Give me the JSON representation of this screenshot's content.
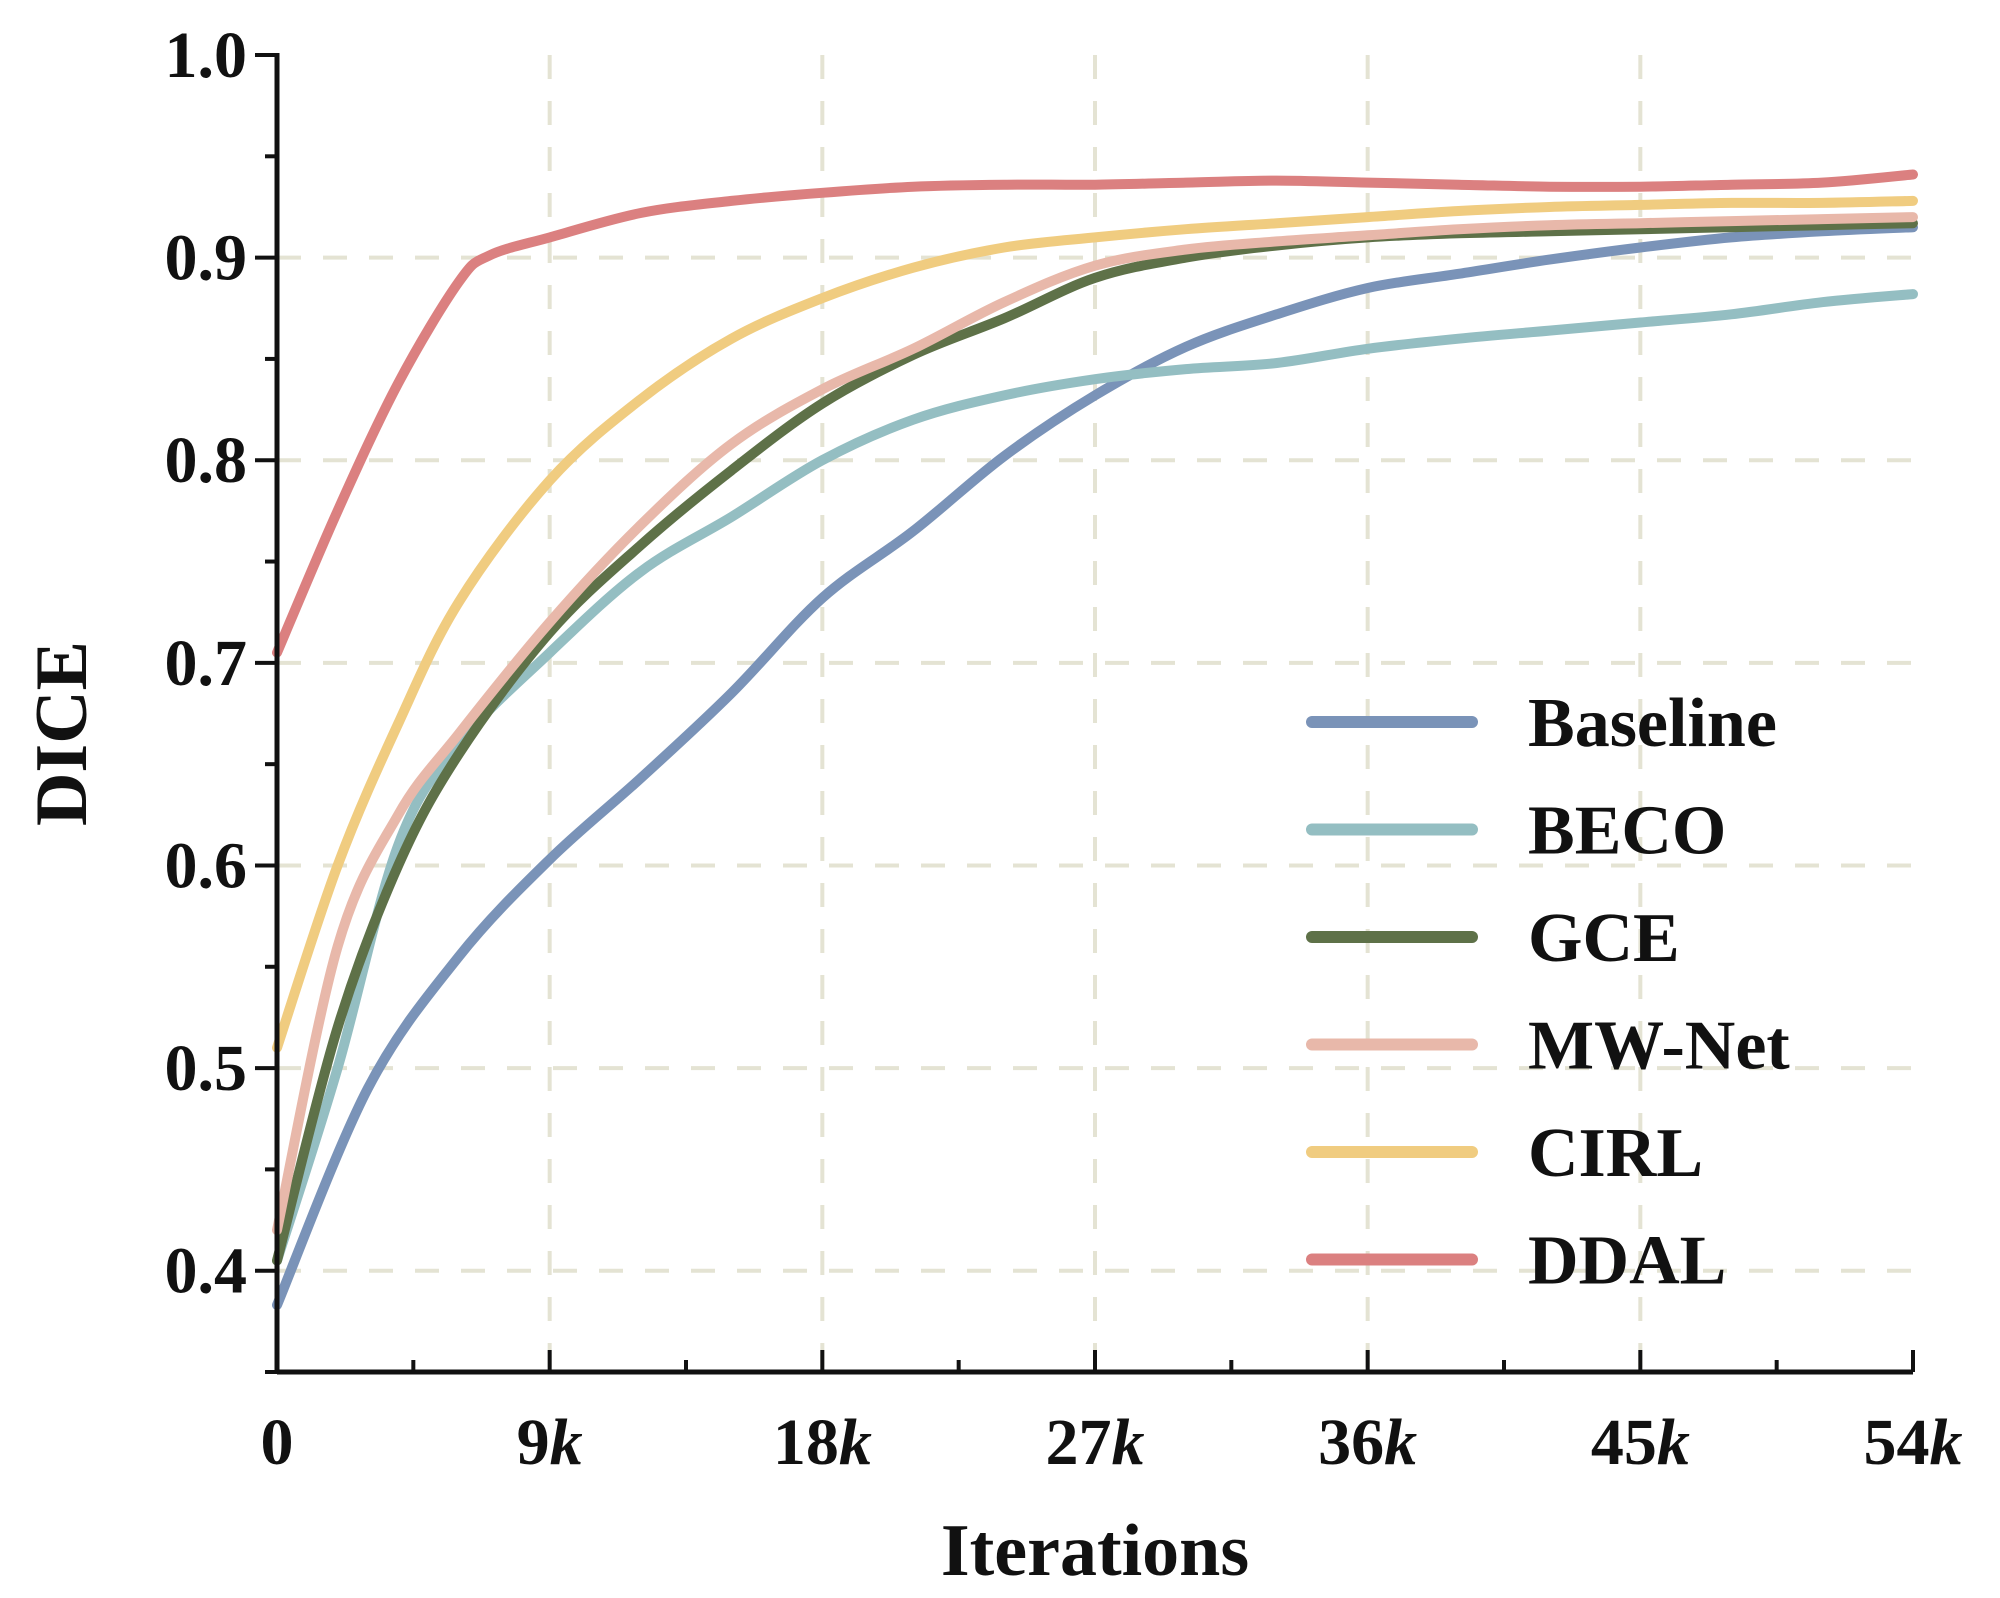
{
  "chart_data": {
    "type": "line",
    "title": "",
    "xlabel": "Iterations",
    "ylabel": "DICE",
    "xlim": [
      0,
      54
    ],
    "ylim": [
      0.35,
      1.0
    ],
    "grid": true,
    "legend_position": "bottom-right",
    "x_ticks": [
      {
        "value": 0,
        "num": "0",
        "suffix": ""
      },
      {
        "value": 9,
        "num": "9",
        "suffix": "k"
      },
      {
        "value": 18,
        "num": "18",
        "suffix": "k"
      },
      {
        "value": 27,
        "num": "27",
        "suffix": "k"
      },
      {
        "value": 36,
        "num": "36",
        "suffix": "k"
      },
      {
        "value": 45,
        "num": "45",
        "suffix": "k"
      },
      {
        "value": 54,
        "num": "54",
        "suffix": "k"
      }
    ],
    "y_ticks": [
      {
        "value": 0.4,
        "label": "0.4"
      },
      {
        "value": 0.5,
        "label": "0.5"
      },
      {
        "value": 0.6,
        "label": "0.6"
      },
      {
        "value": 0.7,
        "label": "0.7"
      },
      {
        "value": 0.8,
        "label": "0.8"
      },
      {
        "value": 0.9,
        "label": "0.9"
      },
      {
        "value": 1.0,
        "label": "1.0"
      }
    ],
    "series": [
      {
        "name": "Baseline",
        "color": "#7a93b8",
        "x": [
          0,
          3,
          6,
          9,
          12,
          15,
          18,
          21,
          24,
          27,
          30,
          33,
          36,
          39,
          42,
          45,
          48,
          51,
          54
        ],
        "y": [
          0.383,
          0.49,
          0.555,
          0.603,
          0.643,
          0.685,
          0.732,
          0.765,
          0.802,
          0.832,
          0.856,
          0.872,
          0.885,
          0.892,
          0.899,
          0.905,
          0.91,
          0.913,
          0.915
        ]
      },
      {
        "name": "BECO",
        "color": "#94bec2",
        "x": [
          0,
          2,
          4,
          6,
          9,
          12,
          15,
          18,
          21,
          24,
          27,
          30,
          33,
          36,
          39,
          42,
          45,
          48,
          51,
          54
        ],
        "y": [
          0.405,
          0.5,
          0.61,
          0.66,
          0.705,
          0.745,
          0.772,
          0.8,
          0.82,
          0.832,
          0.84,
          0.845,
          0.848,
          0.855,
          0.86,
          0.864,
          0.868,
          0.872,
          0.878,
          0.882
        ]
      },
      {
        "name": "GCE",
        "color": "#5e7148",
        "x": [
          0,
          2,
          4,
          6,
          9,
          12,
          15,
          18,
          21,
          24,
          27,
          30,
          33,
          36,
          39,
          42,
          45,
          48,
          51,
          54
        ],
        "y": [
          0.405,
          0.52,
          0.6,
          0.655,
          0.715,
          0.758,
          0.795,
          0.828,
          0.852,
          0.87,
          0.89,
          0.9,
          0.906,
          0.91,
          0.912,
          0.913,
          0.914,
          0.915,
          0.916,
          0.917
        ]
      },
      {
        "name": "MW-Net",
        "color": "#e8b8aa",
        "x": [
          0,
          2,
          4,
          6,
          9,
          12,
          15,
          18,
          21,
          24,
          27,
          30,
          33,
          36,
          39,
          42,
          45,
          48,
          51,
          54
        ],
        "y": [
          0.42,
          0.56,
          0.625,
          0.665,
          0.72,
          0.768,
          0.808,
          0.835,
          0.855,
          0.878,
          0.896,
          0.904,
          0.908,
          0.911,
          0.914,
          0.916,
          0.917,
          0.918,
          0.919,
          0.92
        ]
      },
      {
        "name": "CIRL",
        "color": "#f0cc80",
        "x": [
          0,
          2,
          4,
          6,
          9,
          12,
          15,
          18,
          21,
          24,
          27,
          30,
          33,
          36,
          39,
          42,
          45,
          48,
          51,
          54
        ],
        "y": [
          0.51,
          0.6,
          0.67,
          0.73,
          0.79,
          0.83,
          0.86,
          0.88,
          0.895,
          0.905,
          0.91,
          0.914,
          0.917,
          0.92,
          0.923,
          0.925,
          0.926,
          0.927,
          0.927,
          0.928
        ]
      },
      {
        "name": "DDAL",
        "color": "#db8080",
        "x": [
          0,
          2,
          4,
          6,
          7,
          9,
          12,
          15,
          18,
          21,
          24,
          27,
          30,
          33,
          36,
          39,
          42,
          45,
          48,
          51,
          54
        ],
        "y": [
          0.705,
          0.775,
          0.838,
          0.888,
          0.901,
          0.91,
          0.922,
          0.928,
          0.932,
          0.935,
          0.936,
          0.936,
          0.937,
          0.938,
          0.937,
          0.936,
          0.935,
          0.935,
          0.936,
          0.937,
          0.941
        ]
      }
    ]
  }
}
